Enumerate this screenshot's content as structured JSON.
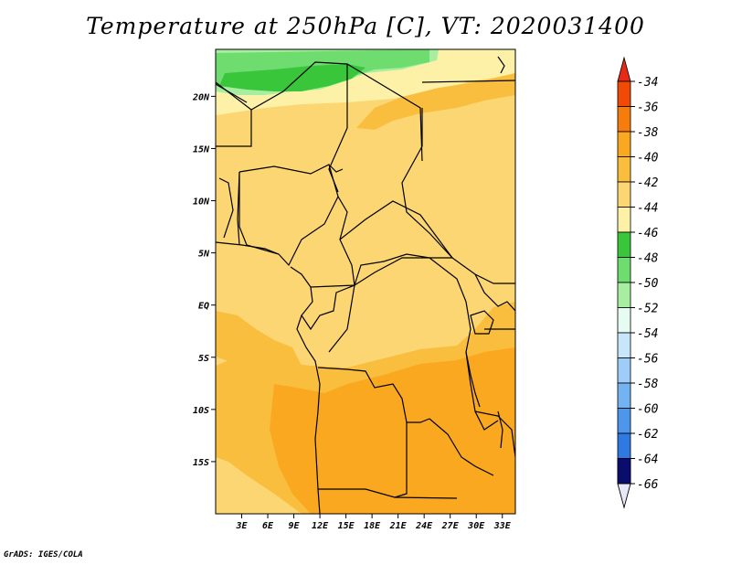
{
  "title": "Temperature at 250hPa [C], VT: 2020031400",
  "credit": "GrADS: IGES/COLA",
  "map": {
    "lat_labels": [
      "20N",
      "15N",
      "10N",
      "5N",
      "EQ",
      "5S",
      "10S",
      "15S"
    ],
    "lat_values": [
      20,
      15,
      10,
      5,
      0,
      -5,
      -10,
      -15
    ],
    "lon_labels": [
      "3E",
      "6E",
      "9E",
      "12E",
      "15E",
      "18E",
      "21E",
      "24E",
      "27E",
      "30E",
      "33E"
    ],
    "lon_values": [
      3,
      6,
      9,
      12,
      15,
      18,
      21,
      24,
      27,
      30,
      33
    ],
    "lat_range": [
      -20,
      24.5
    ],
    "lon_range": [
      0,
      34.5
    ]
  },
  "colorbar": {
    "labels": [
      "-34",
      "-36",
      "-38",
      "-40",
      "-42",
      "-44",
      "-46",
      "-48",
      "-50",
      "-52",
      "-54",
      "-56",
      "-58",
      "-60",
      "-62",
      "-64",
      "-66"
    ],
    "colors": [
      "#f04a06",
      "#f67d0c",
      "#f9a820",
      "#fabe3e",
      "#fbd673",
      "#fdf1a8",
      "#3ac63a",
      "#6fdc6f",
      "#a8eea0",
      "#e6fbf2",
      "#c6e6fb",
      "#9dcdf8",
      "#74b3f2",
      "#4e95ec",
      "#3078e2",
      "#1a58c8",
      "#0d369d"
    ],
    "top_color": "#e52a18",
    "bottom_color": "#0a0c6e"
  },
  "colors": {
    "green_dark": "#3ac63a",
    "green_mid": "#6fdc6f",
    "green_light": "#a8eea0",
    "yellow_pale": "#fdf1a8",
    "yellow": "#fbd673",
    "orange_light": "#fabe3e",
    "orange": "#f9a820"
  }
}
